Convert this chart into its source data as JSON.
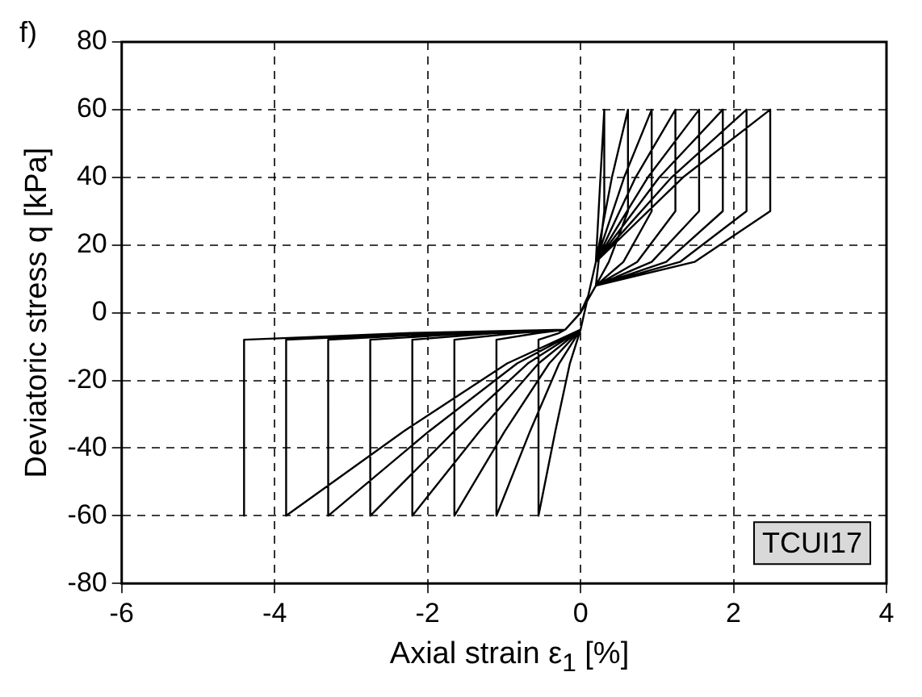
{
  "chart_data": {
    "type": "line",
    "xlabel": "Axial strain ε$_{1}$ [%]",
    "ylabel": "Deviatoric stress q [kPa]",
    "annotations": [
      "f)",
      "TCUI17"
    ],
    "xlim": [
      -6,
      4
    ],
    "xticks": [
      -6,
      -4,
      -2,
      0,
      2,
      4
    ],
    "ylim": [
      -80,
      80
    ],
    "yticks": [
      -80,
      -60,
      -40,
      -20,
      0,
      20,
      40,
      60,
      80
    ],
    "grid": true,
    "legend": false,
    "series": [
      {
        "color": "#000000",
        "marker": "none",
        "line_style": "solid",
        "x": [
          0,
          0.1,
          0.2,
          0.26,
          0.31,
          0.31,
          0.2,
          0,
          -0.2,
          -0.28,
          -0.55,
          -0.55,
          -0.33,
          -0.14,
          0,
          0.1,
          0.2,
          0.41,
          0.62,
          0.62,
          0.37,
          0.2,
          0,
          -0.2,
          -0.55,
          -1.1,
          -1.1,
          -0.66,
          -0.28,
          0,
          0.1,
          0.2,
          0.57,
          0.93,
          0.93,
          0.56,
          0.2,
          0,
          -0.2,
          -0.83,
          -1.65,
          -1.65,
          -0.99,
          -0.41,
          0,
          0.1,
          0.2,
          0.72,
          1.24,
          1.24,
          0.74,
          0.2,
          0,
          -0.2,
          -1.1,
          -2.2,
          -2.2,
          -1.32,
          -0.55,
          0,
          0.1,
          0.2,
          0.88,
          1.55,
          1.55,
          0.93,
          0.2,
          0,
          -0.2,
          -1.38,
          -2.75,
          -2.75,
          -1.65,
          -0.69,
          0,
          0.1,
          0.2,
          1.03,
          1.86,
          1.86,
          1.12,
          0.2,
          0,
          -0.2,
          -1.65,
          -3.3,
          -3.3,
          -1.98,
          -0.83,
          0,
          0.1,
          0.2,
          1.19,
          2.17,
          2.17,
          1.3,
          0.2,
          0,
          -0.2,
          -1.93,
          -3.85,
          -3.85,
          -2.31,
          -0.96,
          0,
          0.1,
          0.2,
          1.34,
          2.48,
          2.48,
          1.49,
          0.2,
          0,
          -0.2,
          -2.2,
          -4.4,
          -4.4
        ],
        "values": [
          0,
          5,
          15,
          40,
          60,
          30,
          8,
          0,
          -5,
          -6,
          -8,
          -60,
          -35,
          -15,
          -5,
          5,
          15,
          40,
          60,
          30,
          15,
          8,
          0,
          -5,
          -6,
          -8,
          -60,
          -35,
          -15,
          -5,
          5,
          15,
          40,
          60,
          30,
          15,
          8,
          0,
          -5,
          -6,
          -8,
          -60,
          -35,
          -15,
          -5,
          5,
          15,
          40,
          60,
          30,
          15,
          8,
          0,
          -5,
          -6,
          -8,
          -60,
          -35,
          -15,
          -5,
          5,
          15,
          40,
          60,
          30,
          15,
          8,
          0,
          -5,
          -6,
          -8,
          -60,
          -35,
          -15,
          -5,
          5,
          15,
          40,
          60,
          30,
          15,
          8,
          0,
          -5,
          -6,
          -8,
          -60,
          -35,
          -15,
          -5,
          5,
          15,
          40,
          60,
          30,
          15,
          8,
          0,
          -5,
          -6,
          -8,
          -60,
          -35,
          -15,
          -5,
          5,
          15,
          40,
          60,
          30,
          15,
          8,
          0,
          -5,
          -6,
          -8,
          -60
        ]
      }
    ]
  }
}
